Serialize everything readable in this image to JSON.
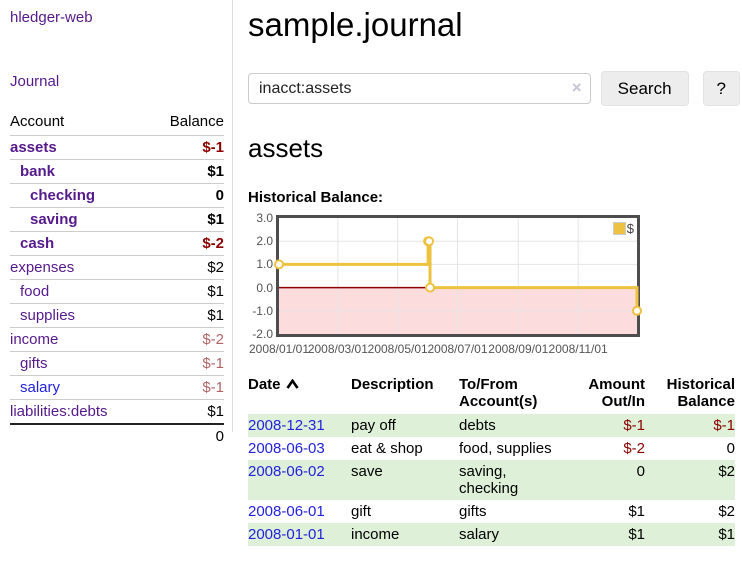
{
  "app": {
    "title": "hledger-web"
  },
  "sidebar": {
    "journal_link": "Journal",
    "accounts_table": {
      "account_header": "Account",
      "balance_header": "Balance",
      "rows": [
        {
          "name": "assets",
          "balance": "$-1",
          "indent": 0,
          "bold": true,
          "name_color": "purple",
          "balance_color": "negative"
        },
        {
          "name": "bank",
          "balance": "$1",
          "indent": 1,
          "bold": true,
          "name_color": "purple",
          "balance_color": "normal"
        },
        {
          "name": "checking",
          "balance": "0",
          "indent": 2,
          "bold": true,
          "name_color": "purple",
          "balance_color": "normal"
        },
        {
          "name": "saving",
          "balance": "$1",
          "indent": 2,
          "bold": true,
          "name_color": "purple",
          "balance_color": "normal"
        },
        {
          "name": "cash",
          "balance": "$-2",
          "indent": 1,
          "bold": true,
          "name_color": "purple",
          "balance_color": "negative"
        },
        {
          "name": "expenses",
          "balance": "$2",
          "indent": 0,
          "bold": false,
          "name_color": "purple",
          "balance_color": "normal"
        },
        {
          "name": "food",
          "balance": "$1",
          "indent": 1,
          "bold": false,
          "name_color": "purple",
          "balance_color": "normal"
        },
        {
          "name": "supplies",
          "balance": "$1",
          "indent": 1,
          "bold": false,
          "name_color": "purple",
          "balance_color": "normal"
        },
        {
          "name": "income",
          "balance": "$-2",
          "indent": 0,
          "bold": false,
          "name_color": "purple",
          "balance_color": "negative-faded"
        },
        {
          "name": "gifts",
          "balance": "$-1",
          "indent": 1,
          "bold": false,
          "name_color": "purple",
          "balance_color": "negative-faded"
        },
        {
          "name": "salary",
          "balance": "$-1",
          "indent": 1,
          "bold": false,
          "name_color": "blue",
          "balance_color": "negative-faded"
        },
        {
          "name": "liabilities:debts",
          "balance": "$1",
          "indent": 0,
          "bold": false,
          "name_color": "purple",
          "balance_color": "normal"
        }
      ],
      "total": "0"
    }
  },
  "header": {
    "title": "sample.journal"
  },
  "search": {
    "value": "inacct:assets",
    "clear_icon": "×",
    "button_label": "Search",
    "help_label": "?"
  },
  "account_page": {
    "heading": "assets",
    "chart_label": "Historical Balance:"
  },
  "chart_data": {
    "type": "line",
    "line_style": "step",
    "title": "Historical Balance:",
    "series": [
      {
        "name": "$",
        "points": [
          [
            "2008-01-01",
            1
          ],
          [
            "2008-06-01",
            2
          ],
          [
            "2008-06-02",
            2
          ],
          [
            "2008-06-03",
            0
          ],
          [
            "2008-12-31",
            -1
          ]
        ]
      }
    ],
    "x_domain": [
      "2008-01-01",
      "2008-12-31"
    ],
    "ylim": [
      -2,
      3
    ],
    "yticks": [
      "3.0",
      "2.0",
      "1.0",
      "0.0",
      "-1.0",
      "-2.0"
    ],
    "ytick_values": [
      3,
      2,
      1,
      0,
      -1,
      -2
    ],
    "xticks": [
      "2008/01/01",
      "2008/03/01",
      "2008/05/01",
      "2008/07/01",
      "2008/09/01",
      "2008/11/01"
    ],
    "grid": true,
    "legend": {
      "label": "$",
      "position": "top-right"
    },
    "negative_region_shaded": true
  },
  "register_table": {
    "headers": {
      "date": "Date",
      "description": "Description",
      "accounts": "To/From\nAccount(s)",
      "amount": "Amount\nOut/In",
      "balance": "Historical\nBalance"
    },
    "sort": {
      "column": "date",
      "direction": "ascending"
    },
    "rows": [
      {
        "date": "2008-12-31",
        "description": "pay off",
        "accounts": "debts",
        "amount": "$-1",
        "amount_negative": true,
        "balance": "$-1",
        "balance_negative": true,
        "shaded": true
      },
      {
        "date": "2008-06-03",
        "description": "eat & shop",
        "accounts": "food, supplies",
        "amount": "$-2",
        "amount_negative": true,
        "balance": "0",
        "balance_negative": false,
        "shaded": false
      },
      {
        "date": "2008-06-02",
        "description": "save",
        "accounts": "saving,\nchecking",
        "amount": "0",
        "amount_negative": false,
        "balance": "$2",
        "balance_negative": false,
        "shaded": true
      },
      {
        "date": "2008-06-01",
        "description": "gift",
        "accounts": "gifts",
        "amount": "$1",
        "amount_negative": false,
        "balance": "$2",
        "balance_negative": false,
        "shaded": false
      },
      {
        "date": "2008-01-01",
        "description": "income",
        "accounts": "salary",
        "amount": "$1",
        "amount_negative": false,
        "balance": "$1",
        "balance_negative": false,
        "shaded": true
      }
    ]
  },
  "colors": {
    "purple": "#551a8b",
    "blue": "#2222dd",
    "negative": "#8b0000",
    "negative_faded": "#b06666",
    "green_row": "#dff0d8",
    "chart_pink": "#fcdcdc",
    "chart_gold": "#edc240",
    "zero_line": "#8b0000",
    "gridline": "#e5e5e5",
    "plot_border": "#4d4d4d"
  }
}
